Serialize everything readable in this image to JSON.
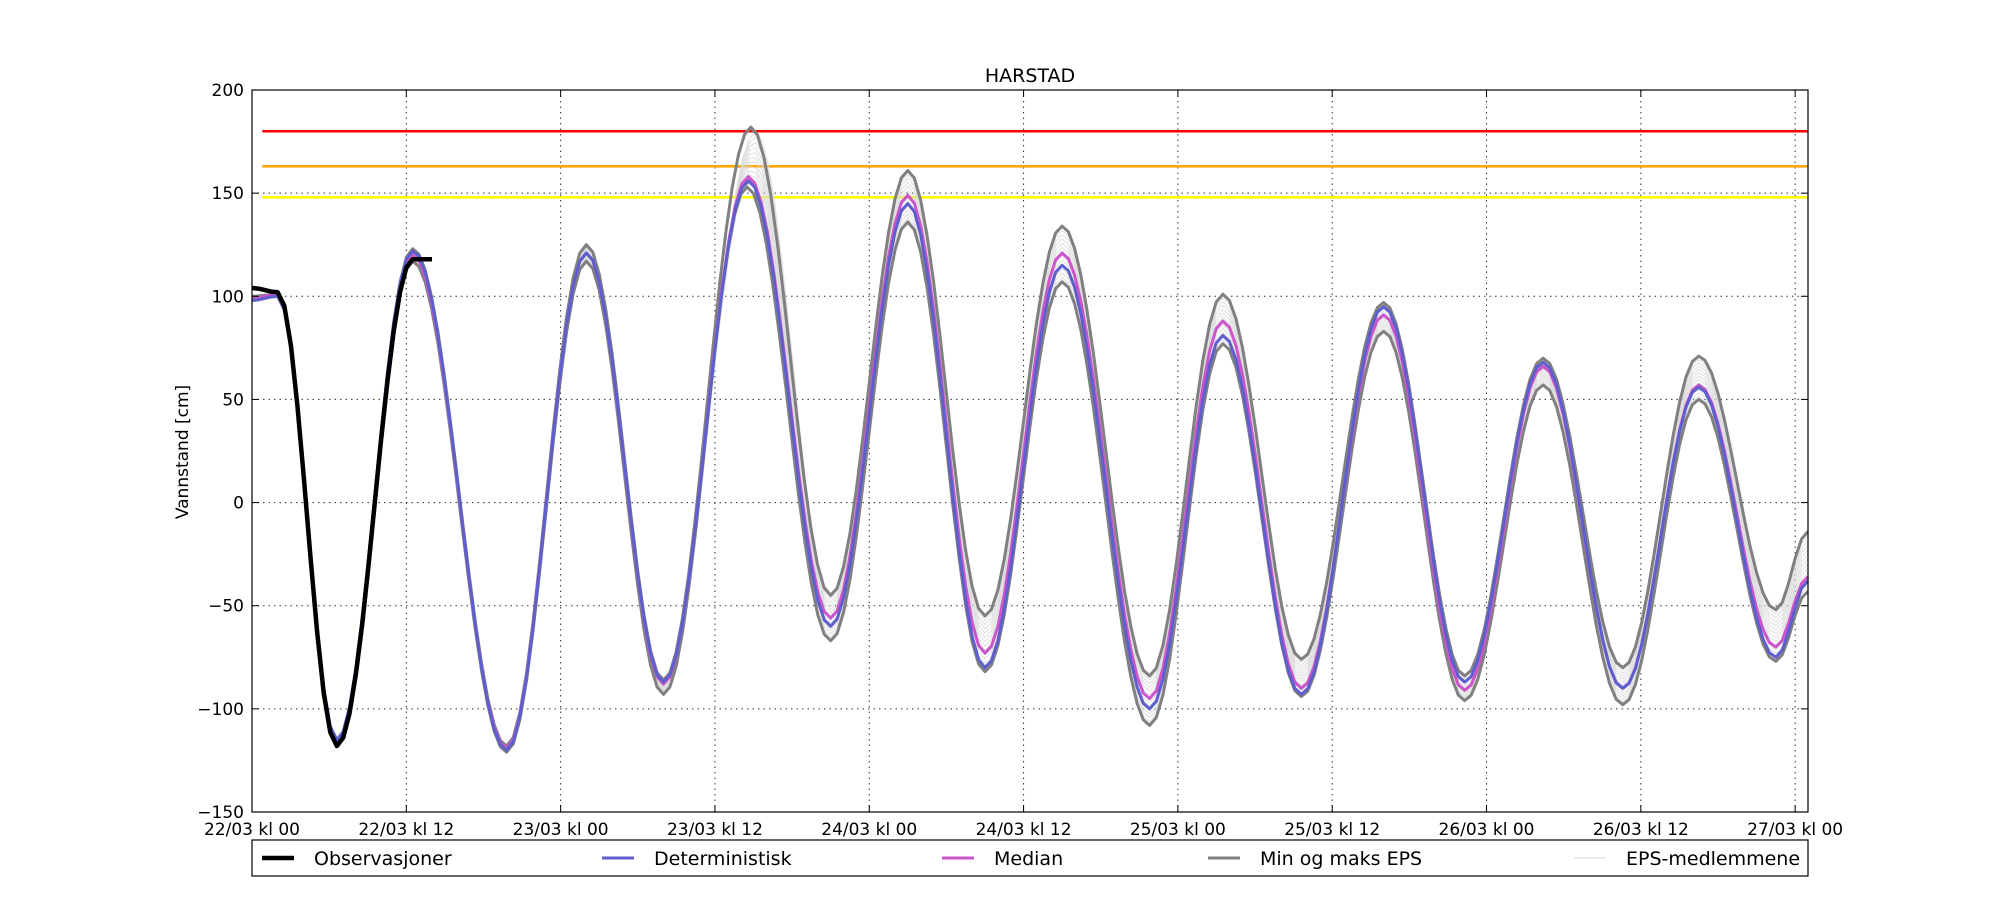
{
  "chart_data": {
    "type": "line",
    "title": "HARSTAD",
    "ylabel": "Vannstand [cm]",
    "xlabel": "",
    "ylim": [
      -150,
      200
    ],
    "xlim": [
      0,
      121
    ],
    "x_unit": "hours from 22/03 kl 00",
    "x_ticks": [
      {
        "x": 0,
        "label": "22/03 kl 00"
      },
      {
        "x": 12,
        "label": "22/03 kl 12"
      },
      {
        "x": 24,
        "label": "23/03 kl 00"
      },
      {
        "x": 36,
        "label": "23/03 kl 12"
      },
      {
        "x": 48,
        "label": "24/03 kl 00"
      },
      {
        "x": 60,
        "label": "24/03 kl 12"
      },
      {
        "x": 72,
        "label": "25/03 kl 00"
      },
      {
        "x": 84,
        "label": "25/03 kl 12"
      },
      {
        "x": 96,
        "label": "26/03 kl 00"
      },
      {
        "x": 108,
        "label": "26/03 kl 12"
      },
      {
        "x": 120,
        "label": "27/03 kl 00"
      }
    ],
    "y_ticks": [
      -150,
      -100,
      -50,
      0,
      50,
      100,
      150,
      200
    ],
    "grid": true,
    "legend_position": "bottom",
    "thresholds": [
      {
        "value": 180,
        "color": "#ff0000"
      },
      {
        "value": 163,
        "color": "#ffa500"
      },
      {
        "value": 148,
        "color": "#ffff00"
      }
    ],
    "series": [
      {
        "name": "EPS-medlemmene",
        "color": "#d8d8d8",
        "kind": "eps",
        "extremes": [
          [
            0,
            100
          ],
          [
            2,
            101
          ],
          [
            6.6,
            -116
          ],
          [
            12.5,
            119
          ],
          [
            19.8,
            -118
          ],
          [
            26,
            122
          ],
          [
            32,
            -88
          ],
          [
            38.7,
            160
          ],
          [
            45,
            -55
          ],
          [
            51,
            148
          ],
          [
            57,
            -72
          ],
          [
            63,
            119
          ],
          [
            69.8,
            -97
          ],
          [
            75.5,
            88
          ],
          [
            81.6,
            -88
          ],
          [
            88,
            92
          ],
          [
            94.3,
            -89
          ],
          [
            100.4,
            67
          ],
          [
            106.6,
            -88
          ],
          [
            112.5,
            60
          ],
          [
            118.5,
            -65
          ],
          [
            121,
            -30
          ]
        ]
      },
      {
        "name": "Min og maks EPS",
        "color": "#808080",
        "kind": "max",
        "extremes": [
          [
            0,
            100
          ],
          [
            2,
            101
          ],
          [
            6.6,
            -116
          ],
          [
            12.5,
            123
          ],
          [
            19.8,
            -118
          ],
          [
            26,
            125
          ],
          [
            32,
            -86
          ],
          [
            38.8,
            182
          ],
          [
            45,
            -45
          ],
          [
            51,
            161
          ],
          [
            57,
            -55
          ],
          [
            63,
            134
          ],
          [
            69.8,
            -84
          ],
          [
            75.5,
            101
          ],
          [
            81.6,
            -76
          ],
          [
            88,
            97
          ],
          [
            94.3,
            -84
          ],
          [
            100.4,
            70
          ],
          [
            106.6,
            -80
          ],
          [
            112.5,
            71
          ],
          [
            118.5,
            -52
          ],
          [
            121,
            -14
          ]
        ]
      },
      {
        "name": "Min og maks EPS",
        "color": "#808080",
        "kind": "min",
        "extremes": [
          [
            0,
            98
          ],
          [
            2,
            100
          ],
          [
            6.6,
            -118
          ],
          [
            12.5,
            117
          ],
          [
            19.8,
            -121
          ],
          [
            26,
            117
          ],
          [
            32,
            -93
          ],
          [
            38.5,
            153
          ],
          [
            45,
            -67
          ],
          [
            51,
            136
          ],
          [
            57,
            -82
          ],
          [
            63,
            107
          ],
          [
            69.8,
            -108
          ],
          [
            75.5,
            77
          ],
          [
            81.6,
            -94
          ],
          [
            88,
            83
          ],
          [
            94.3,
            -96
          ],
          [
            100.4,
            57
          ],
          [
            106.6,
            -98
          ],
          [
            112.5,
            50
          ],
          [
            118.5,
            -77
          ],
          [
            121,
            -43
          ]
        ]
      },
      {
        "name": "Median",
        "color": "#cc55cc",
        "kind": "median",
        "extremes": [
          [
            0,
            99
          ],
          [
            2,
            101
          ],
          [
            6.6,
            -116
          ],
          [
            12.5,
            120
          ],
          [
            19.8,
            -119
          ],
          [
            26,
            121
          ],
          [
            32,
            -88
          ],
          [
            38.6,
            158
          ],
          [
            45,
            -56
          ],
          [
            51,
            149
          ],
          [
            57,
            -73
          ],
          [
            63,
            121
          ],
          [
            69.8,
            -95
          ],
          [
            75.5,
            88
          ],
          [
            81.6,
            -90
          ],
          [
            88,
            91
          ],
          [
            94.3,
            -91
          ],
          [
            100.4,
            66
          ],
          [
            106.6,
            -90
          ],
          [
            112.5,
            57
          ],
          [
            118.5,
            -70
          ],
          [
            121,
            -36
          ]
        ]
      },
      {
        "name": "Deterministisk",
        "color": "#5e5ecf",
        "kind": "det",
        "extremes": [
          [
            0,
            98
          ],
          [
            2,
            100
          ],
          [
            6.6,
            -115
          ],
          [
            12.5,
            122
          ],
          [
            19.8,
            -120
          ],
          [
            26,
            121
          ],
          [
            32,
            -87
          ],
          [
            38.6,
            156
          ],
          [
            45,
            -60
          ],
          [
            51,
            145
          ],
          [
            57,
            -80
          ],
          [
            63,
            115
          ],
          [
            69.8,
            -100
          ],
          [
            75.5,
            81
          ],
          [
            81.6,
            -93
          ],
          [
            88,
            95
          ],
          [
            94.3,
            -87
          ],
          [
            100.4,
            68
          ],
          [
            106.6,
            -90
          ],
          [
            112.5,
            56
          ],
          [
            118.5,
            -75
          ],
          [
            121,
            -38
          ]
        ]
      },
      {
        "name": "Observasjoner",
        "color": "#000000",
        "kind": "obs",
        "extremes": [
          [
            0,
            104
          ],
          [
            2,
            102
          ],
          [
            6.6,
            -118
          ],
          [
            12.5,
            118
          ],
          [
            14,
            118
          ]
        ]
      }
    ]
  }
}
